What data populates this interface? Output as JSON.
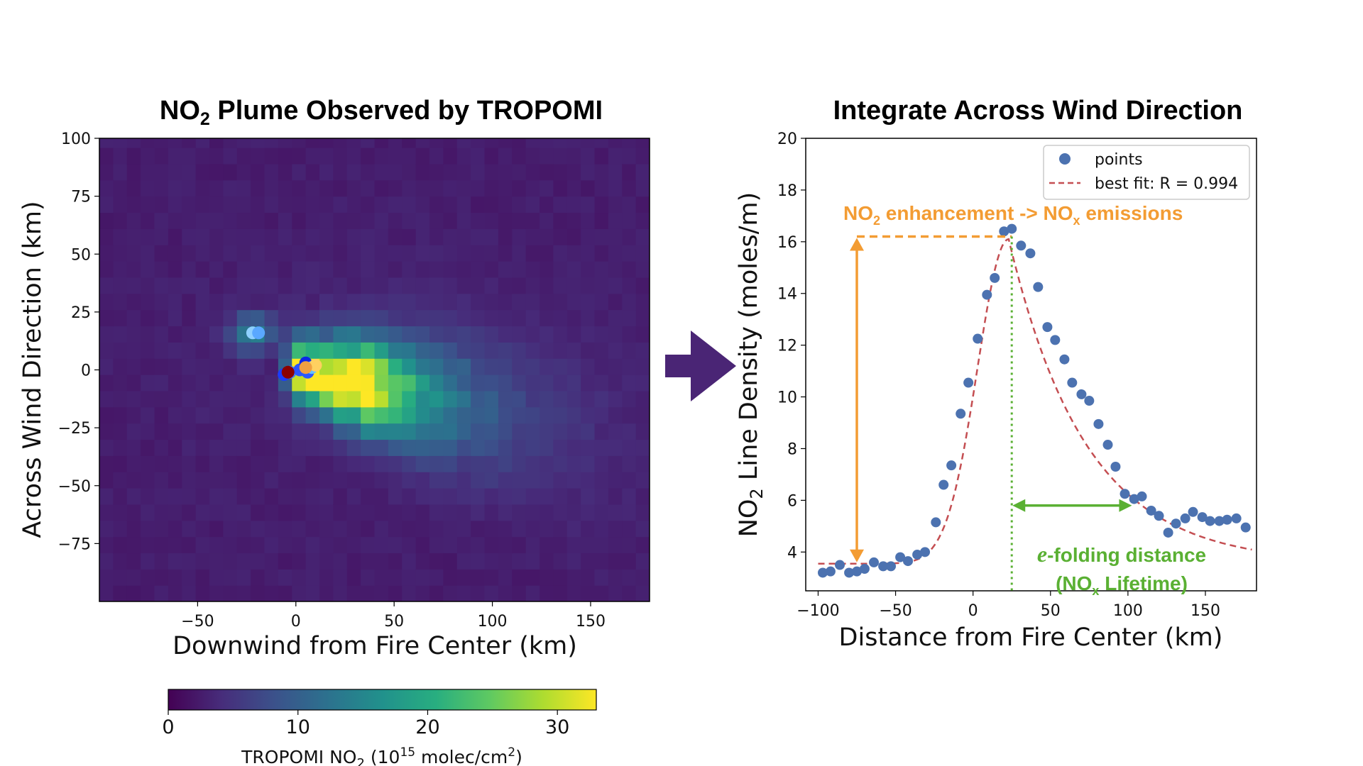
{
  "colors": {
    "viridis": [
      "#440154",
      "#472d7b",
      "#3b528b",
      "#2c728e",
      "#21918c",
      "#28ae80",
      "#5ec962",
      "#addc30",
      "#fde725"
    ],
    "points": "#4c72b0",
    "fit": "#c44e52",
    "orange": "#f39c33",
    "green": "#5ab033",
    "arrow": "#4a2575"
  },
  "chart_data": [
    {
      "type": "heatmap",
      "title_main": "NO",
      "title_sub": "2",
      "title_rest": " Plume Observed by TROPOMI",
      "xlabel": "Downwind from Fire Center (km)",
      "ylabel": "Across Wind Direction (km)",
      "xlim": [
        -100,
        180
      ],
      "ylim": [
        -100,
        100
      ],
      "xticks": [
        -50,
        0,
        50,
        100,
        150
      ],
      "xtick_labels": [
        "−50",
        "0",
        "50",
        "100",
        "150"
      ],
      "yticks": [
        100,
        75,
        50,
        25,
        0,
        -25,
        -50,
        -75
      ],
      "ytick_labels": [
        "100",
        "75",
        "50",
        "25",
        "0",
        "−25",
        "−50",
        "−75"
      ],
      "background_value": 2,
      "plume": {
        "source_x": 0,
        "source_y": 0,
        "peak_value": 32,
        "secondary_source": {
          "x": -22,
          "y": 16,
          "value": 12
        }
      },
      "fire_points": [
        {
          "x": -22,
          "y": 16,
          "color": "#8fd0ff"
        },
        {
          "x": -19,
          "y": 16,
          "color": "#5aa8ff"
        },
        {
          "x": -6,
          "y": -2,
          "color": "#1a3cff"
        },
        {
          "x": -3,
          "y": -1,
          "color": "#3f7bff"
        },
        {
          "x": 2,
          "y": 0,
          "color": "#2a55ff"
        },
        {
          "x": 5,
          "y": 3,
          "color": "#0a28e6"
        },
        {
          "x": 6,
          "y": -1,
          "color": "#2b59ff"
        },
        {
          "x": 8,
          "y": 1,
          "color": "#66c2ff"
        },
        {
          "x": 10,
          "y": 2,
          "color": "#ffd060"
        },
        {
          "x": -4,
          "y": -1,
          "color": "#8b0000"
        },
        {
          "x": 5,
          "y": 1,
          "color": "#f0a040"
        }
      ],
      "colorbar": {
        "range": [
          0,
          33
        ],
        "ticks": [
          0,
          10,
          20,
          30
        ],
        "label_main": "TROPOMI NO",
        "label_sub": "2",
        "label_unit_a": " (10",
        "label_exp": "15",
        "label_unit_b": " molec/cm",
        "label_exp2": "2",
        "label_close": ")"
      }
    },
    {
      "type": "scatter",
      "title": "Integrate Across Wind Direction",
      "xlabel": "Distance from Fire Center (km)",
      "ylabel_main": "NO",
      "ylabel_sub": "2",
      "ylabel_rest": " Line Density (moles/m)",
      "xlim": [
        -108,
        183
      ],
      "ylim": [
        2.5,
        20
      ],
      "xticks": [
        -100,
        -50,
        0,
        50,
        100,
        150
      ],
      "xtick_labels": [
        "−100",
        "−50",
        "0",
        "50",
        "100",
        "150"
      ],
      "yticks": [
        4,
        6,
        8,
        10,
        12,
        14,
        16,
        18,
        20
      ],
      "legend": {
        "points": "points",
        "fit": "best fit: R = 0.994",
        "placement": "top-right"
      },
      "series": [
        {
          "name": "points",
          "x": [
            -97,
            -92,
            -86,
            -80,
            -75,
            -70,
            -64,
            -58,
            -53,
            -47,
            -42,
            -36,
            -31,
            -24,
            -19,
            -14,
            -8,
            -3,
            3,
            9,
            14,
            20,
            25,
            31,
            37,
            42,
            48,
            53,
            59,
            64,
            70,
            75,
            81,
            87,
            92,
            98,
            104,
            109,
            115,
            120,
            126,
            131,
            137,
            142,
            148,
            153,
            159,
            164,
            170,
            176
          ],
          "values": [
            3.2,
            3.25,
            3.5,
            3.2,
            3.25,
            3.35,
            3.6,
            3.45,
            3.45,
            3.8,
            3.65,
            3.9,
            4.0,
            5.15,
            6.6,
            7.35,
            9.35,
            10.55,
            12.25,
            13.95,
            14.6,
            16.4,
            16.5,
            15.85,
            15.55,
            14.25,
            12.7,
            12.2,
            11.45,
            10.55,
            10.1,
            9.85,
            8.95,
            8.15,
            7.3,
            6.25,
            6.05,
            6.15,
            5.6,
            5.4,
            4.75,
            5.1,
            5.3,
            5.55,
            5.35,
            5.2,
            5.2,
            5.25,
            5.3,
            4.95
          ]
        },
        {
          "name": "best fit: R = 0.994",
          "model": {
            "baseline": 3.55,
            "amplitude": 12.55,
            "peak_x": 23,
            "rise_sigma": 20,
            "efold": 50
          }
        }
      ],
      "annotations": {
        "enh_a": "NO",
        "enh_sub": "2",
        "enh_b": " enhancement -> NO",
        "enh_sub2": "x",
        "enh_c": " emissions",
        "efold_e": "e",
        "efold_rest": "-folding distance",
        "efold_line2_a": "(NO",
        "efold_line2_sub": "x",
        "efold_line2_b": " Lifetime)",
        "peak_y": 16.2,
        "base_y": 3.55,
        "efold_y": 5.8,
        "peak_x": 25,
        "efold_x": 103,
        "vert_arrow_x": -75,
        "horiz_line_x0": -75
      }
    }
  ]
}
